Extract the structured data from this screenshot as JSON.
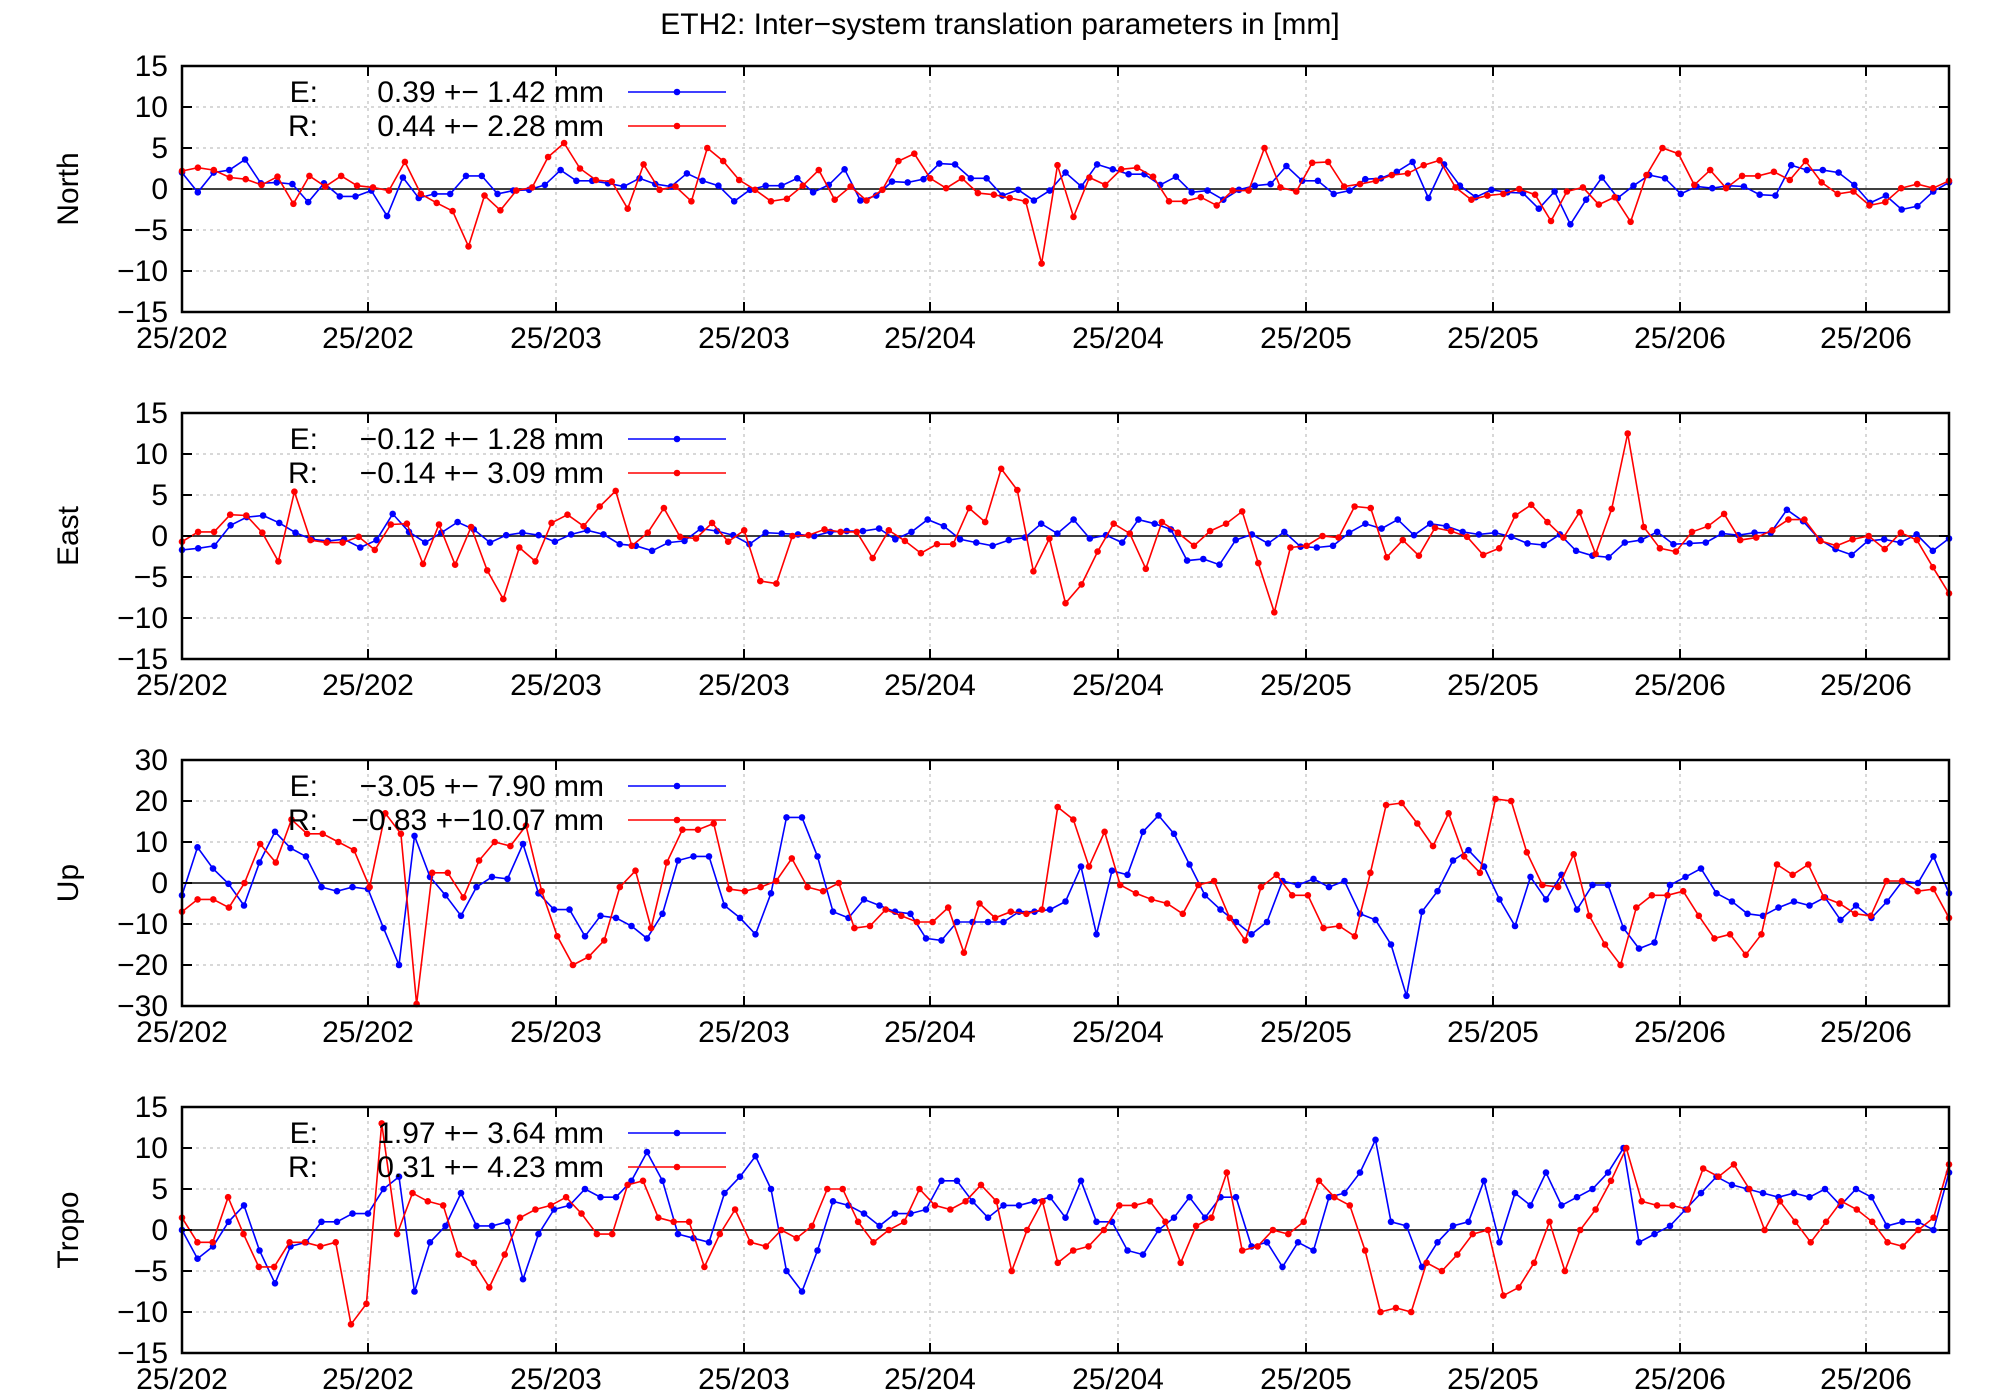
{
  "title": "ETH2: Inter−system translation parameters in [mm]",
  "colors": {
    "E": "#0000ff",
    "R": "#ff0000"
  },
  "chart_data": [
    {
      "type": "line",
      "ylabel": "North",
      "ylim": [
        -15,
        15
      ],
      "yticks": [
        "15",
        "10",
        "5",
        "0",
        "−5",
        "−10",
        "−15"
      ],
      "xticks": [
        "25/202",
        "25/202",
        "25/203",
        "25/203",
        "25/204",
        "25/204",
        "25/205",
        "25/205",
        "25/206",
        "25/206"
      ],
      "legend": [
        {
          "key": "E:",
          "text": "0.39 +− 1.42 mm"
        },
        {
          "key": "R:",
          "text": "0.44 +− 2.28 mm"
        }
      ],
      "series": [
        {
          "name": "E",
          "values": [
            2.0,
            -0.4,
            2.0,
            2.3,
            3.6,
            0.7,
            0.8,
            0.6,
            -1.6,
            0.7,
            -0.9,
            -0.9,
            -0.2,
            -3.3,
            1.4,
            -1.1,
            -0.6,
            -0.6,
            1.6,
            1.6,
            -0.6,
            -0.2,
            -0.1,
            0.5,
            2.3,
            1.0,
            1.0,
            0.7,
            0.3,
            1.3,
            0.6,
            0.3,
            1.9,
            1.0,
            0.4,
            -1.5,
            -0.1,
            0.4,
            0.4,
            1.3,
            -0.4,
            0.5,
            2.4,
            -1.4,
            -0.8,
            0.9,
            0.8,
            1.2,
            3.1,
            3.0,
            1.3,
            1.3,
            -0.8,
            -0.1,
            -1.4,
            -0.2,
            2.0,
            0.3,
            3.0,
            2.4,
            1.8,
            1.8,
            0.5,
            1.5,
            -0.4,
            -0.2,
            -1.3,
            -0.1,
            0.4,
            0.6,
            2.8,
            1.0,
            1.0,
            -0.6,
            -0.2,
            1.2,
            1.3,
            2.1,
            3.3,
            -1.1,
            3.0,
            0.4,
            -1.0,
            -0.1,
            -0.4,
            -0.5,
            -2.4,
            -0.3,
            -4.3,
            -1.3,
            1.4,
            -1.1,
            0.4,
            1.7,
            1.3,
            -0.6,
            0.3,
            0.1,
            0.4,
            0.3,
            -0.7,
            -0.8,
            2.9,
            2.3,
            2.3,
            2.0,
            0.5,
            -1.7,
            -0.8,
            -2.5,
            -2.1,
            -0.3,
            0.8
          ]
        },
        {
          "name": "R",
          "values": [
            2.2,
            2.6,
            2.3,
            1.4,
            1.2,
            0.5,
            1.5,
            -1.8,
            1.6,
            0.3,
            1.6,
            0.4,
            0.2,
            -0.2,
            3.3,
            -0.6,
            -1.7,
            -2.7,
            -7.0,
            -0.8,
            -2.6,
            -0.2,
            0.2,
            3.9,
            5.6,
            2.5,
            1.1,
            0.9,
            -2.4,
            3.0,
            -0.1,
            0.3,
            -1.5,
            5.0,
            3.4,
            1.1,
            -0.1,
            -1.5,
            -1.2,
            0.4,
            2.3,
            -1.3,
            0.3,
            -1.4,
            -0.1,
            3.4,
            4.3,
            1.3,
            0.1,
            1.3,
            -0.5,
            -0.7,
            -1.1,
            -1.5,
            -9.1,
            2.9,
            -3.4,
            1.4,
            0.5,
            2.4,
            2.6,
            1.5,
            -1.5,
            -1.5,
            -1.0,
            -2.0,
            -0.2,
            -0.2,
            5.0,
            0.2,
            -0.3,
            3.2,
            3.3,
            0.3,
            0.6,
            1.0,
            1.7,
            1.9,
            2.9,
            3.5,
            0.2,
            -1.3,
            -0.8,
            -0.6,
            0.0,
            -0.7,
            -3.9,
            -0.3,
            0.2,
            -1.9,
            -1.0,
            -4.0,
            1.7,
            5.0,
            4.3,
            0.5,
            2.3,
            0.1,
            1.6,
            1.6,
            2.1,
            1.1,
            3.4,
            0.8,
            -0.6,
            -0.3,
            -2.0,
            -1.6,
            0.1,
            0.6,
            0.1,
            1.0
          ]
        }
      ]
    },
    {
      "type": "line",
      "ylabel": "East",
      "ylim": [
        -15,
        15
      ],
      "yticks": [
        "15",
        "10",
        "5",
        "0",
        "−5",
        "−10",
        "−15"
      ],
      "xticks": [
        "25/202",
        "25/202",
        "25/203",
        "25/203",
        "25/204",
        "25/204",
        "25/205",
        "25/205",
        "25/206",
        "25/206"
      ],
      "legend": [
        {
          "key": "E:",
          "text": "−0.12 +− 1.28 mm"
        },
        {
          "key": "R:",
          "text": "−0.14 +− 3.09 mm"
        }
      ],
      "series": [
        {
          "name": "E",
          "values": [
            -1.7,
            -1.5,
            -1.2,
            1.3,
            2.3,
            2.5,
            1.6,
            0.4,
            -0.4,
            -0.6,
            -0.4,
            -1.4,
            -0.5,
            2.7,
            0.5,
            -0.8,
            0.4,
            1.7,
            0.8,
            -0.8,
            0.1,
            0.4,
            0.1,
            -0.7,
            0.2,
            0.7,
            0.2,
            -1.0,
            -1.2,
            -1.8,
            -0.8,
            -0.6,
            0.9,
            0.6,
            0.1,
            -1.0,
            0.4,
            0.3,
            0.2,
            0.0,
            0.5,
            0.6,
            0.6,
            0.9,
            -0.4,
            0.5,
            2.0,
            1.2,
            -0.4,
            -0.8,
            -1.2,
            -0.5,
            -0.2,
            1.5,
            0.3,
            2.0,
            -0.3,
            0.1,
            -0.8,
            2.0,
            1.5,
            0.8,
            -3.0,
            -2.8,
            -3.5,
            -0.5,
            0.2,
            -0.9,
            0.5,
            -1.3,
            -1.4,
            -1.2,
            0.4,
            1.5,
            0.9,
            2.0,
            0.1,
            1.5,
            1.2,
            0.5,
            0.2,
            0.4,
            -0.1,
            -0.9,
            -1.1,
            0.2,
            -1.8,
            -2.4,
            -2.6,
            -0.8,
            -0.5,
            0.5,
            -1.0,
            -0.9,
            -0.8,
            0.3,
            0.1,
            0.4,
            0.4,
            3.2,
            1.8,
            -0.4,
            -1.6,
            -2.3,
            -0.6,
            -0.4,
            -0.8,
            0.2,
            -1.8,
            -0.3
          ]
        },
        {
          "name": "R",
          "values": [
            -0.7,
            0.5,
            0.5,
            2.6,
            2.5,
            0.4,
            -3.1,
            5.4,
            -0.5,
            -0.8,
            -0.8,
            -0.1,
            -1.7,
            1.4,
            1.5,
            -3.4,
            1.4,
            -3.5,
            1.1,
            -4.2,
            -7.7,
            -1.4,
            -3.1,
            1.6,
            2.6,
            1.2,
            3.6,
            5.5,
            -1.2,
            0.4,
            3.4,
            -0.1,
            -0.3,
            1.6,
            -0.7,
            0.7,
            -5.5,
            -5.8,
            0.0,
            0.1,
            0.8,
            0.5,
            0.5,
            -2.7,
            0.7,
            -0.6,
            -2.1,
            -1.0,
            -1.0,
            3.4,
            1.7,
            8.2,
            5.6,
            -4.3,
            -0.3,
            -8.2,
            -5.9,
            -1.9,
            1.5,
            0.3,
            -4.0,
            1.7,
            0.4,
            -1.2,
            0.6,
            1.5,
            3.0,
            -3.3,
            -9.3,
            -1.4,
            -1.2,
            0.0,
            -0.2,
            3.6,
            3.4,
            -2.6,
            -0.5,
            -2.4,
            1.0,
            0.6,
            -0.1,
            -2.3,
            -1.5,
            2.5,
            3.8,
            1.7,
            -0.2,
            2.9,
            -2.2,
            3.3,
            12.5,
            1.1,
            -1.5,
            -1.9,
            0.5,
            1.2,
            2.7,
            -0.5,
            -0.2,
            0.7,
            2.0,
            2.0,
            -0.6,
            -1.2,
            -0.4,
            0.0,
            -1.6,
            0.4,
            -0.5,
            -3.8,
            -7.0
          ]
        }
      ]
    },
    {
      "type": "line",
      "ylabel": "Up",
      "ylim": [
        -30,
        30
      ],
      "yticks": [
        "30",
        "20",
        "10",
        "0",
        "−10",
        "−20",
        "−30"
      ],
      "xticks": [
        "25/202",
        "25/202",
        "25/203",
        "25/203",
        "25/204",
        "25/204",
        "25/205",
        "25/205",
        "25/206",
        "25/206"
      ],
      "legend": [
        {
          "key": "E:",
          "text": "−3.05 +− 7.90 mm"
        },
        {
          "key": "R:",
          "text": "−0.83 +−10.07 mm"
        }
      ],
      "series": [
        {
          "name": "E",
          "values": [
            -3,
            8.7,
            3.5,
            -0.2,
            -5.5,
            5,
            12.5,
            8.5,
            6.5,
            -1,
            -2,
            -1,
            -1.5,
            -11,
            -20,
            11.5,
            1.5,
            -3,
            -8,
            -1,
            1.5,
            1,
            9.5,
            -2.5,
            -6.5,
            -6.5,
            -13,
            -8,
            -8.5,
            -10.5,
            -13.5,
            -7.5,
            5.5,
            6.5,
            6.5,
            -5.5,
            -8.5,
            -12.5,
            -2.5,
            16,
            16,
            6.5,
            -7,
            -8.5,
            -4,
            -5.5,
            -7,
            -7.5,
            -13.5,
            -14,
            -9.5,
            -9.5,
            -9.5,
            -9.5,
            -7,
            -7,
            -6.5,
            -4.5,
            4,
            -12.5,
            3,
            2,
            12.5,
            16.5,
            12,
            4.5,
            -3,
            -6.5,
            -9.5,
            -12.5,
            -9.5,
            0.5,
            -0.5,
            1,
            -1,
            0.5,
            -7.5,
            -9,
            -15,
            -27.5,
            -7,
            -2,
            5.5,
            8,
            4,
            -4,
            -10.5,
            1.5,
            -4,
            2,
            -6.5,
            -0.5,
            -0.5,
            -11,
            -16,
            -14.5,
            -0.5,
            1.5,
            3.5,
            -2.5,
            -4.5,
            -7.5,
            -8,
            -6,
            -4.5,
            -5.5,
            -3.5,
            -9,
            -5.5,
            -8.5,
            -4.5,
            0.5,
            0,
            6.5,
            -2.5
          ]
        },
        {
          "name": "R",
          "values": [
            -7,
            -4,
            -4,
            -6,
            0,
            9.5,
            5,
            15.5,
            12,
            12,
            10,
            8,
            -1,
            17,
            12,
            -29.5,
            2.5,
            2.5,
            -3.5,
            5.5,
            10,
            9,
            14,
            -2,
            -13,
            -20,
            -18,
            -14,
            -1,
            3,
            -11,
            5,
            13,
            13,
            14.5,
            -1.5,
            -2,
            -1,
            0.5,
            6,
            -1,
            -2,
            0,
            -11,
            -10.5,
            -6.5,
            -8,
            -9.5,
            -9.5,
            -6,
            -17,
            -5,
            -8.5,
            -7,
            -7.5,
            -6.5,
            18.5,
            15.5,
            4,
            12.5,
            -0.5,
            -2.5,
            -4,
            -5,
            -7.5,
            -0.5,
            0.5,
            -8.5,
            -14,
            -1,
            2,
            -3,
            -3,
            -11,
            -10.5,
            -13,
            2.5,
            19,
            19.5,
            14.5,
            9,
            17,
            6.5,
            2.5,
            20.5,
            20,
            7.5,
            -0.5,
            -1,
            7,
            -8,
            -15,
            -20,
            -6,
            -3,
            -3,
            -2,
            -8,
            -13.5,
            -12.5,
            -17.5,
            -12.5,
            4.5,
            2,
            4.5,
            -3.5,
            -5,
            -7.5,
            -8,
            0.5,
            0.5,
            -2,
            -1.5,
            -8.5
          ]
        }
      ]
    },
    {
      "type": "line",
      "ylabel": "Tropo",
      "ylim": [
        -15,
        15
      ],
      "yticks": [
        "15",
        "10",
        "5",
        "0",
        "−5",
        "−10",
        "−15"
      ],
      "xticks": [
        "25/202",
        "25/202",
        "25/203",
        "25/203",
        "25/204",
        "25/204",
        "25/205",
        "25/205",
        "25/206",
        "25/206"
      ],
      "legend": [
        {
          "key": "E:",
          "text": "1.97 +− 3.64 mm"
        },
        {
          "key": "R:",
          "text": "0.31 +− 4.23 mm"
        }
      ],
      "series": [
        {
          "name": "E",
          "values": [
            0,
            -3.5,
            -2,
            1,
            3,
            -2.5,
            -6.5,
            -2,
            -1.5,
            1,
            1,
            2,
            2,
            5,
            6.5,
            -7.5,
            -1.5,
            0.5,
            4.5,
            0.5,
            0.5,
            1,
            -6,
            -0.5,
            2.5,
            3,
            5,
            4,
            4,
            6,
            9.5,
            6,
            -0.5,
            -1,
            -1.5,
            4.5,
            6.5,
            9,
            5,
            -5,
            -7.5,
            -2.5,
            3.5,
            3,
            2,
            0.5,
            2,
            2,
            2.5,
            6,
            6,
            3.5,
            1.5,
            3,
            3,
            3.5,
            4,
            1.5,
            6,
            1,
            1,
            -2.5,
            -3,
            0,
            1.5,
            4,
            1.5,
            4,
            4,
            -2,
            -1.5,
            -4.5,
            -1.5,
            -2.5,
            4,
            4.5,
            7,
            11,
            1,
            0.5,
            -4.5,
            -1.5,
            0.5,
            1,
            6,
            -1.5,
            4.5,
            3,
            7,
            3,
            4,
            5,
            7,
            10,
            -1.5,
            -0.5,
            0.5,
            2.5,
            4.5,
            6.5,
            5.5,
            5,
            4.5,
            4,
            4.5,
            4,
            5,
            3,
            5,
            4,
            0.5,
            1,
            1,
            0,
            7
          ]
        },
        {
          "name": "R",
          "values": [
            1.5,
            -1.5,
            -1.5,
            4,
            -0.5,
            -4.5,
            -4.5,
            -1.5,
            -1.5,
            -2,
            -1.5,
            -11.5,
            -9,
            13,
            -0.5,
            4.5,
            3.5,
            3,
            -3,
            -4,
            -7,
            -3,
            1.5,
            2.5,
            3,
            4,
            2,
            -0.5,
            -0.5,
            5.5,
            6,
            1.5,
            1,
            1,
            -4.5,
            -0.5,
            2.5,
            -1.5,
            -2,
            0,
            -1,
            0.5,
            5,
            5,
            1,
            -1.5,
            0,
            1,
            5,
            3,
            2.5,
            3.5,
            5.5,
            3.5,
            -5,
            0,
            3.5,
            -4,
            -2.5,
            -2,
            0,
            3,
            3,
            3.5,
            1,
            -4,
            0.5,
            1.5,
            7,
            -2.5,
            -2,
            0,
            -0.5,
            1,
            6,
            4,
            3,
            -2.5,
            -10,
            -9.5,
            -10,
            -4,
            -5,
            -3,
            -0.5,
            0,
            -8,
            -7,
            -4,
            1,
            -5,
            0,
            2.5,
            6,
            10,
            3.5,
            3,
            3,
            2.5,
            7.5,
            6.5,
            8,
            5,
            0,
            3.5,
            1,
            -1.5,
            1,
            3.5,
            2.5,
            1,
            -1.5,
            -2,
            0,
            1.5,
            8
          ]
        }
      ]
    }
  ]
}
